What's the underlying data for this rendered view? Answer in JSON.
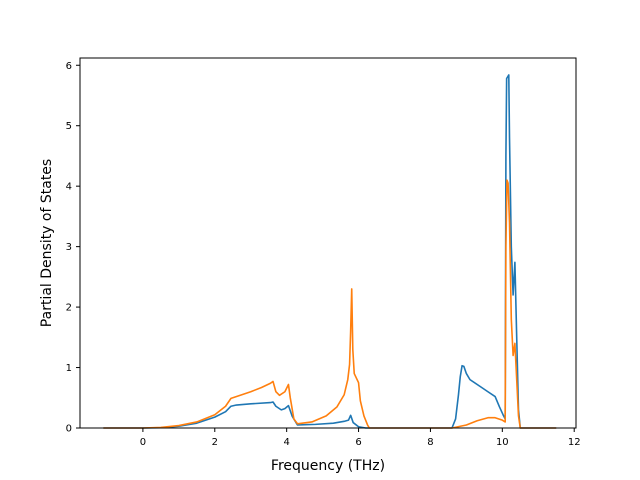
{
  "chart_data": {
    "type": "line",
    "title": "",
    "xlabel": "Frequency (THz)",
    "ylabel": "Partial Density of States",
    "xlim": [
      -1.75,
      12.05
    ],
    "ylim": [
      0,
      6.12
    ],
    "xticks": [
      0,
      2,
      4,
      6,
      8,
      10,
      12
    ],
    "yticks": [
      0,
      1,
      2,
      3,
      4,
      5,
      6
    ],
    "grid": false,
    "legend": "none",
    "series": [
      {
        "color": "#1f77b4",
        "points": [
          [
            -1.1,
            0
          ],
          [
            0,
            0
          ],
          [
            0.5,
            0.005
          ],
          [
            1.0,
            0.03
          ],
          [
            1.5,
            0.08
          ],
          [
            2.0,
            0.18
          ],
          [
            2.3,
            0.27
          ],
          [
            2.45,
            0.36
          ],
          [
            2.6,
            0.38
          ],
          [
            3.0,
            0.4
          ],
          [
            3.55,
            0.42
          ],
          [
            3.62,
            0.43
          ],
          [
            3.7,
            0.36
          ],
          [
            3.85,
            0.3
          ],
          [
            3.95,
            0.32
          ],
          [
            4.05,
            0.37
          ],
          [
            4.15,
            0.2
          ],
          [
            4.3,
            0.05
          ],
          [
            4.8,
            0.06
          ],
          [
            5.3,
            0.08
          ],
          [
            5.6,
            0.11
          ],
          [
            5.72,
            0.13
          ],
          [
            5.78,
            0.21
          ],
          [
            5.85,
            0.09
          ],
          [
            6.0,
            0.02
          ],
          [
            6.2,
            0
          ],
          [
            8.6,
            0
          ],
          [
            8.7,
            0.15
          ],
          [
            8.78,
            0.55
          ],
          [
            8.83,
            0.85
          ],
          [
            8.88,
            1.03
          ],
          [
            8.93,
            1.02
          ],
          [
            9.0,
            0.9
          ],
          [
            9.1,
            0.8
          ],
          [
            9.4,
            0.68
          ],
          [
            9.6,
            0.6
          ],
          [
            9.8,
            0.52
          ],
          [
            9.92,
            0.35
          ],
          [
            10.02,
            0.22
          ],
          [
            10.08,
            0.15
          ],
          [
            10.1,
            4.5
          ],
          [
            10.12,
            5.78
          ],
          [
            10.15,
            5.81
          ],
          [
            10.18,
            5.84
          ],
          [
            10.2,
            4.8
          ],
          [
            10.25,
            3.0
          ],
          [
            10.3,
            2.2
          ],
          [
            10.35,
            2.74
          ],
          [
            10.4,
            1.5
          ],
          [
            10.45,
            0.3
          ],
          [
            10.5,
            0
          ],
          [
            11.5,
            0
          ]
        ]
      },
      {
        "color": "#ff7f0e",
        "points": [
          [
            -1.1,
            0
          ],
          [
            0,
            0
          ],
          [
            0.5,
            0.01
          ],
          [
            1.0,
            0.04
          ],
          [
            1.5,
            0.1
          ],
          [
            2.0,
            0.22
          ],
          [
            2.3,
            0.36
          ],
          [
            2.45,
            0.49
          ],
          [
            2.7,
            0.54
          ],
          [
            3.0,
            0.6
          ],
          [
            3.3,
            0.67
          ],
          [
            3.55,
            0.74
          ],
          [
            3.62,
            0.77
          ],
          [
            3.7,
            0.6
          ],
          [
            3.8,
            0.54
          ],
          [
            3.95,
            0.6
          ],
          [
            4.05,
            0.72
          ],
          [
            4.1,
            0.5
          ],
          [
            4.2,
            0.15
          ],
          [
            4.3,
            0.07
          ],
          [
            4.7,
            0.1
          ],
          [
            5.1,
            0.2
          ],
          [
            5.4,
            0.35
          ],
          [
            5.6,
            0.55
          ],
          [
            5.7,
            0.8
          ],
          [
            5.75,
            1.05
          ],
          [
            5.78,
            1.6
          ],
          [
            5.81,
            2.3
          ],
          [
            5.84,
            1.3
          ],
          [
            5.88,
            0.9
          ],
          [
            6.0,
            0.75
          ],
          [
            6.05,
            0.45
          ],
          [
            6.15,
            0.2
          ],
          [
            6.25,
            0.05
          ],
          [
            6.3,
            0
          ],
          [
            8.6,
            0
          ],
          [
            9.0,
            0.05
          ],
          [
            9.3,
            0.12
          ],
          [
            9.6,
            0.17
          ],
          [
            9.8,
            0.17
          ],
          [
            10.0,
            0.13
          ],
          [
            10.08,
            0.1
          ],
          [
            10.1,
            3.0
          ],
          [
            10.13,
            4.1
          ],
          [
            10.16,
            4.05
          ],
          [
            10.2,
            3.4
          ],
          [
            10.25,
            1.8
          ],
          [
            10.3,
            1.2
          ],
          [
            10.35,
            1.4
          ],
          [
            10.4,
            0.8
          ],
          [
            10.45,
            0.2
          ],
          [
            10.5,
            0
          ],
          [
            11.5,
            0
          ]
        ]
      }
    ]
  }
}
